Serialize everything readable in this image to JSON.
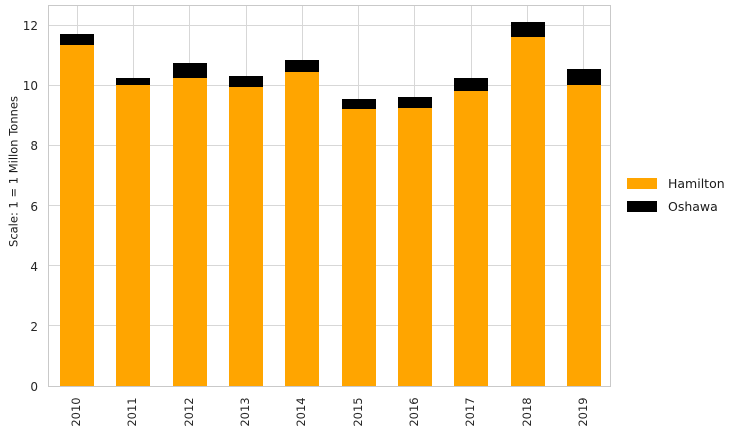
{
  "figure": {
    "y_axis_label": "Scale: 1 = 1 Millon Tonnes",
    "legend": [
      {
        "label": "Hamilton",
        "color": "#FFA500"
      },
      {
        "label": "Oshawa",
        "color": "#000000"
      }
    ]
  },
  "chart_data": {
    "type": "bar",
    "stacked": true,
    "title": "",
    "xlabel": "",
    "ylabel": "Scale: 1 = 1 Millon Tonnes",
    "categories": [
      "2010",
      "2011",
      "2012",
      "2013",
      "2014",
      "2015",
      "2016",
      "2017",
      "2018",
      "2019"
    ],
    "series": [
      {
        "name": "Hamilton",
        "color": "#FFA500",
        "values": [
          11.35,
          10.0,
          10.25,
          9.95,
          10.45,
          9.2,
          9.25,
          9.8,
          11.6,
          10.0
        ]
      },
      {
        "name": "Oshawa",
        "color": "#000000",
        "values": [
          0.35,
          0.25,
          0.5,
          0.35,
          0.4,
          0.35,
          0.35,
          0.45,
          0.5,
          0.55
        ]
      }
    ],
    "totals": [
      11.7,
      10.25,
      10.75,
      10.3,
      10.85,
      9.55,
      9.6,
      10.25,
      12.1,
      10.55
    ],
    "ylim": [
      0,
      12.7
    ],
    "y_ticks": [
      0,
      2,
      4,
      6,
      8,
      10,
      12
    ],
    "grid": true,
    "grid_axes": "both",
    "legend_position": "right"
  }
}
